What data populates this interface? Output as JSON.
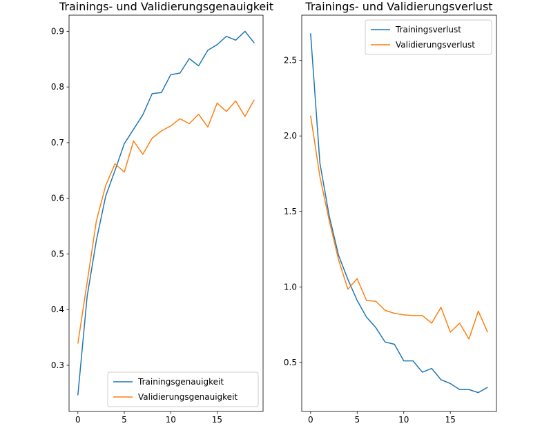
{
  "chart_data": [
    {
      "type": "line",
      "title": "Trainings- und Validierungsgenauigkeit",
      "xlabel": "",
      "ylabel": "",
      "xlim": [
        -0.95,
        19.95
      ],
      "ylim": [
        0.217,
        0.929
      ],
      "xticks": [
        0,
        5,
        10,
        15
      ],
      "yticks": [
        0.3,
        0.4,
        0.5,
        0.6,
        0.7,
        0.8,
        0.9
      ],
      "ytick_format": 1,
      "legend_position": "lower right",
      "x": [
        0,
        1,
        2,
        3,
        4,
        5,
        6,
        7,
        8,
        9,
        10,
        11,
        12,
        13,
        14,
        15,
        16,
        17,
        18,
        19
      ],
      "series": [
        {
          "name": "Trainingsgenauigkeit",
          "color": "#1f77b4",
          "values": [
            0.246,
            0.424,
            0.525,
            0.604,
            0.65,
            0.698,
            0.724,
            0.75,
            0.788,
            0.79,
            0.822,
            0.825,
            0.851,
            0.838,
            0.866,
            0.876,
            0.891,
            0.884,
            0.9,
            0.879
          ]
        },
        {
          "name": "Validierungsgenauigkeit",
          "color": "#ff7f0e",
          "values": [
            0.339,
            0.449,
            0.56,
            0.623,
            0.662,
            0.647,
            0.703,
            0.679,
            0.708,
            0.721,
            0.73,
            0.743,
            0.734,
            0.751,
            0.728,
            0.771,
            0.756,
            0.775,
            0.747,
            0.777
          ]
        }
      ]
    },
    {
      "type": "line",
      "title": "Trainings- und Validierungsverlust",
      "xlabel": "",
      "ylabel": "",
      "xlim": [
        -0.95,
        19.95
      ],
      "ylim": [
        0.175,
        2.8
      ],
      "xticks": [
        0,
        5,
        10,
        15
      ],
      "yticks": [
        0.5,
        1.0,
        1.5,
        2.0,
        2.5
      ],
      "ytick_format": 1,
      "legend_position": "upper right",
      "x": [
        0,
        1,
        2,
        3,
        4,
        5,
        6,
        7,
        8,
        9,
        10,
        11,
        12,
        13,
        14,
        15,
        16,
        17,
        18,
        19
      ],
      "series": [
        {
          "name": "Trainingsverlust",
          "color": "#1f77b4",
          "values": [
            2.68,
            1.82,
            1.47,
            1.21,
            1.05,
            0.91,
            0.8,
            0.73,
            0.635,
            0.62,
            0.51,
            0.51,
            0.435,
            0.46,
            0.385,
            0.36,
            0.32,
            0.32,
            0.3,
            0.335
          ]
        },
        {
          "name": "Validierungsverlust",
          "color": "#ff7f0e",
          "values": [
            2.135,
            1.73,
            1.44,
            1.18,
            0.985,
            1.055,
            0.91,
            0.905,
            0.845,
            0.825,
            0.815,
            0.81,
            0.81,
            0.76,
            0.865,
            0.7,
            0.76,
            0.655,
            0.84,
            0.7
          ]
        }
      ]
    }
  ]
}
